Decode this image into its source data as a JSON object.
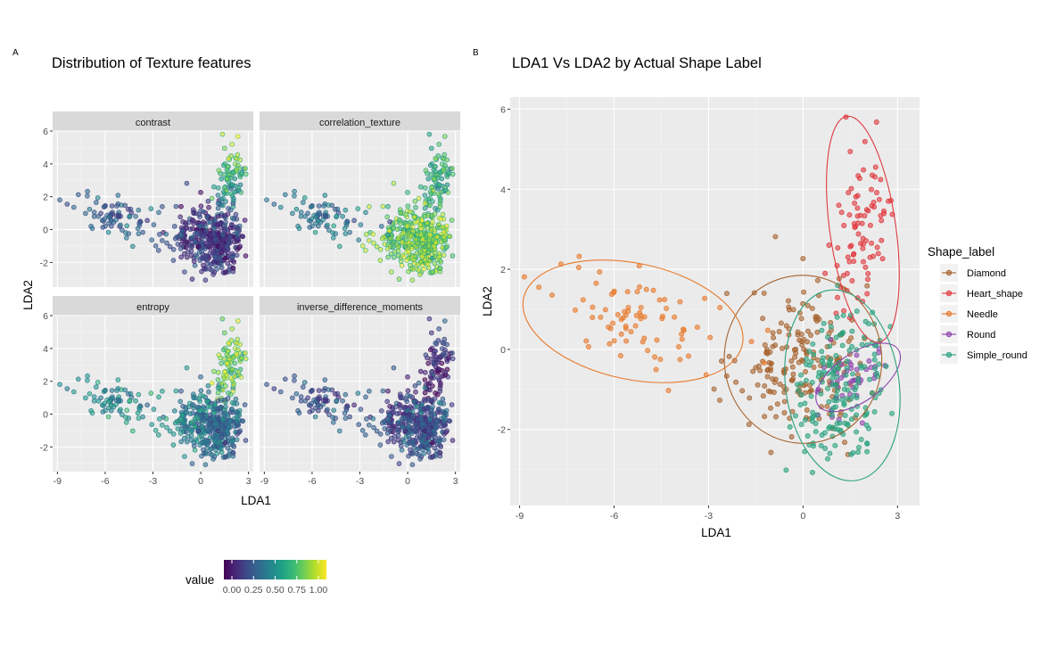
{
  "figure": {
    "tag_a": "A",
    "tag_b": "B",
    "colors": {
      "panel_background": "#ebebeb",
      "strip_background": "#d9d9d9",
      "viridis": [
        "#440154",
        "#482878",
        "#3e4989",
        "#31688e",
        "#26828e",
        "#1f9e89",
        "#35b779",
        "#6ece58",
        "#b5de2b",
        "#fde725"
      ]
    }
  },
  "chart_data": [
    {
      "type": "scatter",
      "title": "Distribution of Texture features",
      "xlabel": "LDA1",
      "ylabel": "LDA2",
      "facets": [
        "contrast",
        "correlation_texture",
        "entropy",
        "inverse_difference_moments"
      ],
      "xlim": [
        -9.3,
        3.3
      ],
      "ylim": [
        -3.5,
        6.0
      ],
      "xticks": [
        -9,
        -6,
        -3,
        0,
        3
      ],
      "xtick_labels": [
        "-9",
        "-6",
        "-3",
        "0",
        "3"
      ],
      "yticks": [
        -2,
        0,
        2,
        4,
        6
      ],
      "ytick_labels": [
        "-2",
        "0",
        "2",
        "4",
        "6"
      ],
      "grid": true,
      "color_scale": {
        "name": "value",
        "palette": "viridis",
        "range": [
          0,
          1
        ],
        "ticks": [
          0,
          0.25,
          0.5,
          0.75,
          1
        ],
        "tick_labels": [
          "0.00",
          "0.25",
          "0.50",
          "0.75",
          "1.00"
        ],
        "legend_position": "bottom"
      },
      "point_groups": [
        {
          "group": "Diamond",
          "n": 190,
          "center": [
            0.0,
            -0.3
          ],
          "sd": [
            1.0,
            1.0
          ],
          "rho": 0.1
        },
        {
          "group": "Heart_shape",
          "n": 85,
          "center": [
            1.9,
            3.1
          ],
          "sd": [
            0.5,
            1.15
          ],
          "rho": 0.3
        },
        {
          "group": "Needle",
          "n": 80,
          "center": [
            -5.2,
            0.7
          ],
          "sd": [
            1.35,
            0.65
          ],
          "rho": -0.25
        },
        {
          "group": "Round",
          "n": 45,
          "center": [
            1.6,
            -0.7
          ],
          "sd": [
            0.6,
            0.5
          ],
          "rho": 0.5
        },
        {
          "group": "Simple_round",
          "n": 180,
          "center": [
            1.2,
            -0.9
          ],
          "sd": [
            0.7,
            1.0
          ],
          "rho": 0.2
        }
      ],
      "feature_values_by_group": {
        "contrast": {
          "Diamond": 0.2,
          "Heart_shape": 0.75,
          "Needle": 0.35,
          "Round": 0.15,
          "Simple_round": 0.2
        },
        "correlation_texture": {
          "Diamond": 0.85,
          "Heart_shape": 0.72,
          "Needle": 0.45,
          "Round": 0.95,
          "Simple_round": 0.9
        },
        "entropy": {
          "Diamond": 0.5,
          "Heart_shape": 0.9,
          "Needle": 0.55,
          "Round": 0.45,
          "Simple_round": 0.4
        },
        "inverse_difference_moments": {
          "Diamond": 0.25,
          "Heart_shape": 0.2,
          "Needle": 0.3,
          "Round": 0.3,
          "Simple_round": 0.3
        }
      }
    },
    {
      "type": "scatter",
      "title": "LDA1 Vs LDA2 by Actual Shape Label",
      "xlabel": "LDA1",
      "ylabel": "LDA2",
      "xlim": [
        -9.3,
        3.7
      ],
      "ylim": [
        -3.9,
        6.3
      ],
      "xticks": [
        -9,
        -6,
        -3,
        0,
        3
      ],
      "xtick_labels": [
        "-9",
        "-6",
        "-3",
        "0",
        "3"
      ],
      "yticks": [
        -2,
        0,
        2,
        4,
        6
      ],
      "ytick_labels": [
        "-2",
        "0",
        "2",
        "4",
        "6"
      ],
      "grid": true,
      "legend": {
        "title": "Shape_label",
        "position": "right",
        "entries": [
          "Diamond",
          "Heart_shape",
          "Needle",
          "Round",
          "Simple_round"
        ]
      },
      "series": [
        {
          "name": "Diamond",
          "color": "#a6632f",
          "n": 190,
          "center": [
            0.0,
            -0.3
          ],
          "sd": [
            1.0,
            1.0
          ],
          "rho": 0.1,
          "ellipse": {
            "center": [
              0.0,
              -0.25
            ],
            "rx": 2.5,
            "ry": 2.1,
            "angle_deg": 4
          }
        },
        {
          "name": "Heart_shape",
          "color": "#e0393e",
          "n": 85,
          "center": [
            1.9,
            3.1
          ],
          "sd": [
            0.5,
            1.15
          ],
          "rho": 0.3,
          "ellipse": {
            "center": [
              1.9,
              3.0
            ],
            "rx": 1.05,
            "ry": 2.85,
            "angle_deg": 8
          }
        },
        {
          "name": "Needle",
          "color": "#e8792b",
          "n": 80,
          "center": [
            -5.2,
            0.7
          ],
          "sd": [
            1.35,
            0.65
          ],
          "rho": -0.25,
          "ellipse": {
            "center": [
              -5.4,
              0.7
            ],
            "rx": 3.55,
            "ry": 1.45,
            "angle_deg": -12
          }
        },
        {
          "name": "Round",
          "color": "#8e44ad",
          "n": 45,
          "center": [
            1.6,
            -0.7
          ],
          "sd": [
            0.6,
            0.5
          ],
          "rho": 0.5,
          "ellipse": {
            "center": [
              1.75,
              -0.7
            ],
            "rx": 1.55,
            "ry": 0.6,
            "angle_deg": 35
          }
        },
        {
          "name": "Simple_round",
          "color": "#2aa27e",
          "n": 180,
          "center": [
            1.2,
            -0.9
          ],
          "sd": [
            0.7,
            1.0
          ],
          "rho": 0.2,
          "ellipse": {
            "center": [
              1.25,
              -0.9
            ],
            "rx": 1.8,
            "ry": 2.4,
            "angle_deg": 8
          }
        }
      ]
    }
  ]
}
